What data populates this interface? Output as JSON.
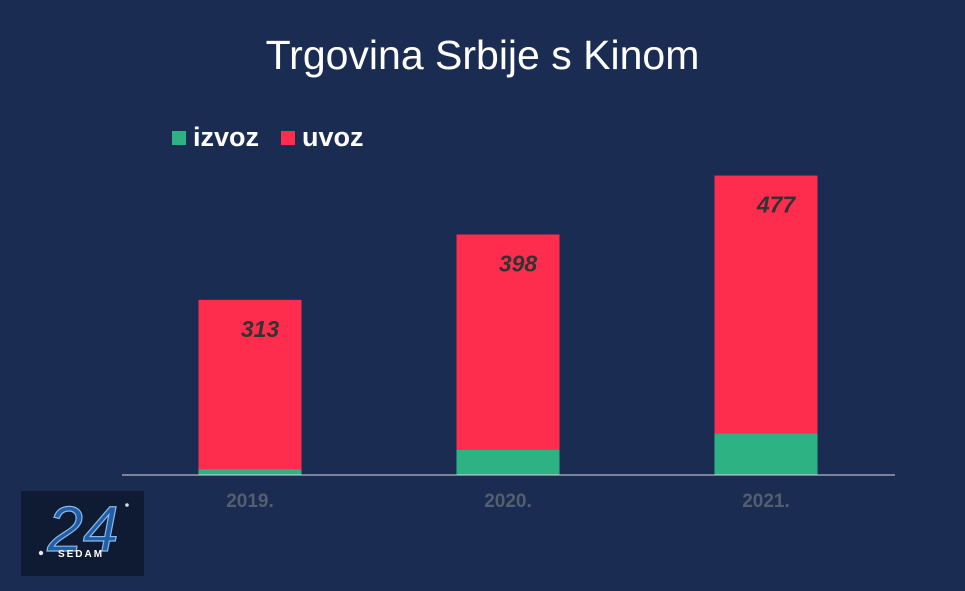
{
  "chart_data": {
    "type": "bar",
    "stacked": true,
    "title": "Trgovina Srbije s Kinom",
    "categories": [
      "2019.",
      "2020.",
      "2021."
    ],
    "series": [
      {
        "name": "izvoz",
        "color": "#2db383",
        "label_color": "#ffffff",
        "values": [
          11,
          47,
          77
        ]
      },
      {
        "name": "uvoz",
        "color": "#ff2d4d",
        "label_color": "#333333",
        "values": [
          313,
          398,
          477
        ]
      }
    ],
    "legend": "top-left",
    "grid": false
  },
  "logo": {
    "text": "SEDAM",
    "number": "24"
  },
  "colors": {
    "background": "#1b2c52",
    "axis_text": "#555e6e"
  }
}
